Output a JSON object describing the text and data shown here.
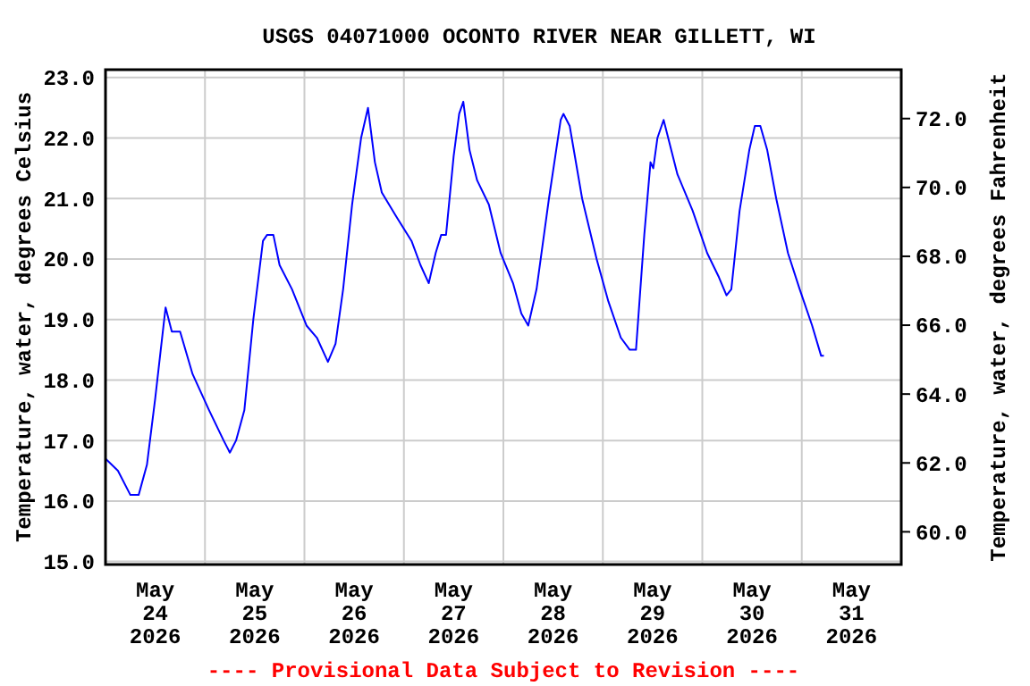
{
  "chart_data": {
    "type": "line",
    "title": "USGS 04071000 OCONTO RIVER NEAR GILLETT, WI",
    "ylabel": "Temperature, water, degrees Celsius",
    "y2label": "Temperature, water, degrees Fahrenheit",
    "annotations": [
      "---- Provisional Data Subject to Revision ----"
    ],
    "x": [
      "2026-05-24T00:00",
      "2026-05-24T03:00",
      "2026-05-24T06:00",
      "2026-05-24T08:00",
      "2026-05-24T10:00",
      "2026-05-24T12:00",
      "2026-05-24T14:00",
      "2026-05-24T14:30",
      "2026-05-24T16:00",
      "2026-05-24T18:00",
      "2026-05-24T21:00",
      "2026-05-25T01:00",
      "2026-05-25T04:30",
      "2026-05-25T06:00",
      "2026-05-25T07:30",
      "2026-05-25T09:30",
      "2026-05-25T11:40",
      "2026-05-25T14:00",
      "2026-05-25T15:00",
      "2026-05-25T16:30",
      "2026-05-25T18:00",
      "2026-05-25T21:00",
      "2026-05-26T00:30",
      "2026-05-26T03:00",
      "2026-05-26T05:40",
      "2026-05-26T07:30",
      "2026-05-26T09:20",
      "2026-05-26T11:30",
      "2026-05-26T13:40",
      "2026-05-26T15:20",
      "2026-05-26T17:00",
      "2026-05-26T18:40",
      "2026-05-26T22:10",
      "2026-05-27T01:50",
      "2026-05-27T04:00",
      "2026-05-27T06:00",
      "2026-05-27T07:40",
      "2026-05-27T09:00",
      "2026-05-27T10:10",
      "2026-05-27T12:00",
      "2026-05-27T13:20",
      "2026-05-27T14:20",
      "2026-05-27T15:50",
      "2026-05-27T17:40",
      "2026-05-27T20:30",
      "2026-05-27T23:20",
      "2026-05-28T02:20",
      "2026-05-28T04:20",
      "2026-05-28T06:00",
      "2026-05-28T08:00",
      "2026-05-28T11:00",
      "2026-05-28T13:50",
      "2026-05-28T14:30",
      "2026-05-28T16:00",
      "2026-05-28T19:00",
      "2026-05-28T22:30",
      "2026-05-29T01:20",
      "2026-05-29T04:20",
      "2026-05-29T06:30",
      "2026-05-29T08:00",
      "2026-05-29T10:00",
      "2026-05-29T11:30",
      "2026-05-29T12:10",
      "2026-05-29T13:10",
      "2026-05-29T14:40",
      "2026-05-29T18:00",
      "2026-05-29T21:40",
      "2026-05-30T01:10",
      "2026-05-30T04:00",
      "2026-05-30T05:50",
      "2026-05-30T07:00",
      "2026-05-30T09:00",
      "2026-05-30T11:20",
      "2026-05-30T12:40",
      "2026-05-30T14:00",
      "2026-05-30T15:40",
      "2026-05-30T17:50",
      "2026-05-30T20:40",
      "2026-05-30T23:30",
      "2026-05-31T02:30",
      "2026-05-31T04:40",
      "2026-05-31T05:20"
    ],
    "series": [
      {
        "color": "#0000ff",
        "values": [
          16.7,
          16.5,
          16.1,
          16.1,
          16.6,
          17.7,
          18.9,
          19.2,
          18.8,
          18.8,
          18.1,
          17.5,
          17.0,
          16.8,
          17.0,
          17.5,
          19.0,
          20.3,
          20.4,
          20.4,
          19.9,
          19.5,
          18.9,
          18.7,
          18.3,
          18.6,
          19.5,
          20.9,
          22.0,
          22.5,
          21.6,
          21.1,
          20.7,
          20.3,
          19.9,
          19.6,
          20.1,
          20.4,
          20.4,
          21.7,
          22.4,
          22.6,
          21.8,
          21.3,
          20.9,
          20.1,
          19.6,
          19.1,
          18.9,
          19.5,
          21.0,
          22.3,
          22.4,
          22.2,
          21.0,
          20.0,
          19.3,
          18.7,
          18.5,
          18.5,
          20.4,
          21.6,
          21.5,
          22.0,
          22.3,
          21.4,
          20.8,
          20.1,
          19.7,
          19.4,
          19.5,
          20.8,
          21.8,
          22.2,
          22.2,
          21.8,
          21.0,
          20.1,
          19.5,
          18.9,
          18.4,
          18.4
        ]
      }
    ],
    "xlim": [
      "2026-05-24T00:00",
      "2026-06-01T00:00"
    ],
    "xticks": [
      {
        "value": "2026-05-24T12:00",
        "label": "May\n24\n2026"
      },
      {
        "value": "2026-05-25T12:00",
        "label": "May\n25\n2026"
      },
      {
        "value": "2026-05-26T12:00",
        "label": "May\n26\n2026"
      },
      {
        "value": "2026-05-27T12:00",
        "label": "May\n27\n2026"
      },
      {
        "value": "2026-05-28T12:00",
        "label": "May\n28\n2026"
      },
      {
        "value": "2026-05-29T12:00",
        "label": "May\n29\n2026"
      },
      {
        "value": "2026-05-30T12:00",
        "label": "May\n30\n2026"
      },
      {
        "value": "2026-05-31T12:00",
        "label": "May\n31\n2026"
      },
      {
        "value": "2026-05-25T00:00",
        "label": null
      },
      {
        "value": "2026-05-26T00:00",
        "label": null
      },
      {
        "value": "2026-05-27T00:00",
        "label": null
      },
      {
        "value": "2026-05-28T00:00",
        "label": null
      },
      {
        "value": "2026-05-29T00:00",
        "label": null
      },
      {
        "value": "2026-05-30T00:00",
        "label": null
      },
      {
        "value": "2026-05-31T00:00",
        "label": null
      }
    ],
    "ylim": [
      14.95,
      23.13
    ],
    "yticks": [
      {
        "value": 15,
        "label": "15.0"
      },
      {
        "value": 16,
        "label": "16.0"
      },
      {
        "value": 17,
        "label": "17.0"
      },
      {
        "value": 18,
        "label": "18.0"
      },
      {
        "value": 19,
        "label": "19.0"
      },
      {
        "value": 20,
        "label": "20.0"
      },
      {
        "value": 21,
        "label": "21.0"
      },
      {
        "value": 22,
        "label": "22.0"
      },
      {
        "value": 23,
        "label": "23.0"
      }
    ],
    "y2lim": [
      59.05,
      73.42
    ],
    "y2ticks": [
      {
        "value": 60,
        "label": "60.0"
      },
      {
        "value": 62,
        "label": "62.0"
      },
      {
        "value": 64,
        "label": "64.0"
      },
      {
        "value": 66,
        "label": "66.0"
      },
      {
        "value": 68,
        "label": "68.0"
      },
      {
        "value": 70,
        "label": "70.0"
      },
      {
        "value": 72,
        "label": "72.0"
      }
    ],
    "grid": true,
    "marker": "none",
    "line_style": "solid"
  }
}
